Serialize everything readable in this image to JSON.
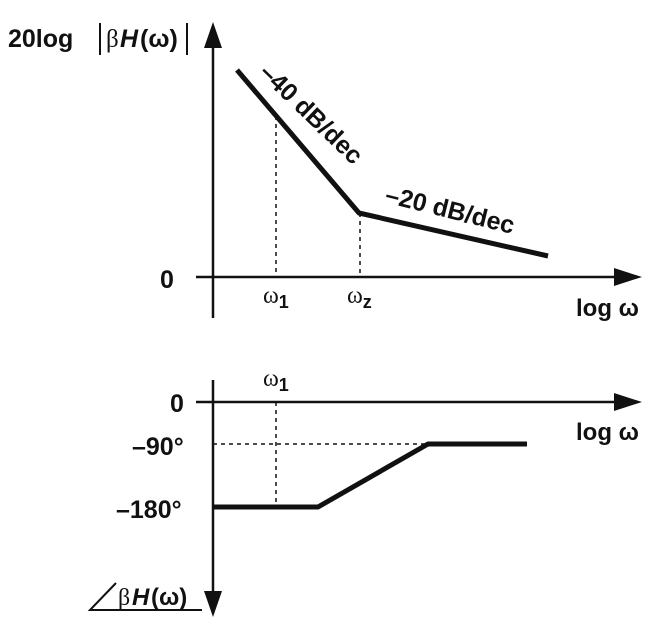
{
  "magnitude_plot": {
    "ylabel_prefix": "20log",
    "ylabel_beta": "β",
    "ylabel_H": "H",
    "ylabel_omega": "(ω)",
    "zero_label": "0",
    "xlabel": "log ω",
    "tick_w1_base": "ω",
    "tick_w1_sub": "1",
    "tick_wz_base": "ω",
    "tick_wz_sub": "z",
    "slope1_label": "–40 dB/dec",
    "slope2_label": "–20 dB/dec"
  },
  "phase_plot": {
    "tick_w1_base": "ω",
    "tick_w1_sub": "1",
    "zero_label": "0",
    "minus90_label": "–90°",
    "minus180_label": "–180°",
    "xlabel": "log ω",
    "ylabel_beta": "β",
    "ylabel_H": "H",
    "ylabel_omega": "(ω)"
  },
  "colors": {
    "ink": "#111111",
    "background": "#ffffff"
  }
}
